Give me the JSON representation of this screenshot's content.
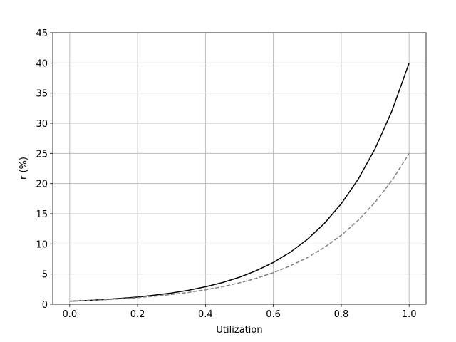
{
  "chart_data": {
    "type": "line",
    "xlabel": "Utilization",
    "ylabel": "r (%)",
    "x": [
      0,
      0.05,
      0.1,
      0.15,
      0.2,
      0.25,
      0.3,
      0.35,
      0.4,
      0.45,
      0.5,
      0.55,
      0.6,
      0.65,
      0.7,
      0.75,
      0.8,
      0.85,
      0.9,
      0.95,
      1.0
    ],
    "series": [
      {
        "color": "#000000",
        "linestyle": "solid",
        "values": [
          0.5,
          0.62,
          0.78,
          0.97,
          1.2,
          1.5,
          1.86,
          2.32,
          2.89,
          3.59,
          4.47,
          5.57,
          6.93,
          8.63,
          10.74,
          13.37,
          16.65,
          20.73,
          25.8,
          32.12,
          40
        ]
      },
      {
        "color": "#808080",
        "linestyle": "dashed",
        "values": [
          0.5,
          0.61,
          0.74,
          0.9,
          1.09,
          1.33,
          1.62,
          1.97,
          2.39,
          2.91,
          3.54,
          4.3,
          5.23,
          6.36,
          7.73,
          9.4,
          11.43,
          13.9,
          16.91,
          20.56,
          25
        ]
      }
    ],
    "xlim": [
      -0.05,
      1.05
    ],
    "xticks": [
      {
        "value": 0,
        "label": "0.0"
      },
      0.2,
      0.4,
      0.6,
      0.8,
      {
        "value": 1,
        "label": "1.0"
      }
    ],
    "ylim": [
      0,
      45
    ],
    "yticks": [
      0,
      5,
      10,
      15,
      20,
      25,
      30,
      35,
      40,
      45
    ],
    "grid": true
  }
}
